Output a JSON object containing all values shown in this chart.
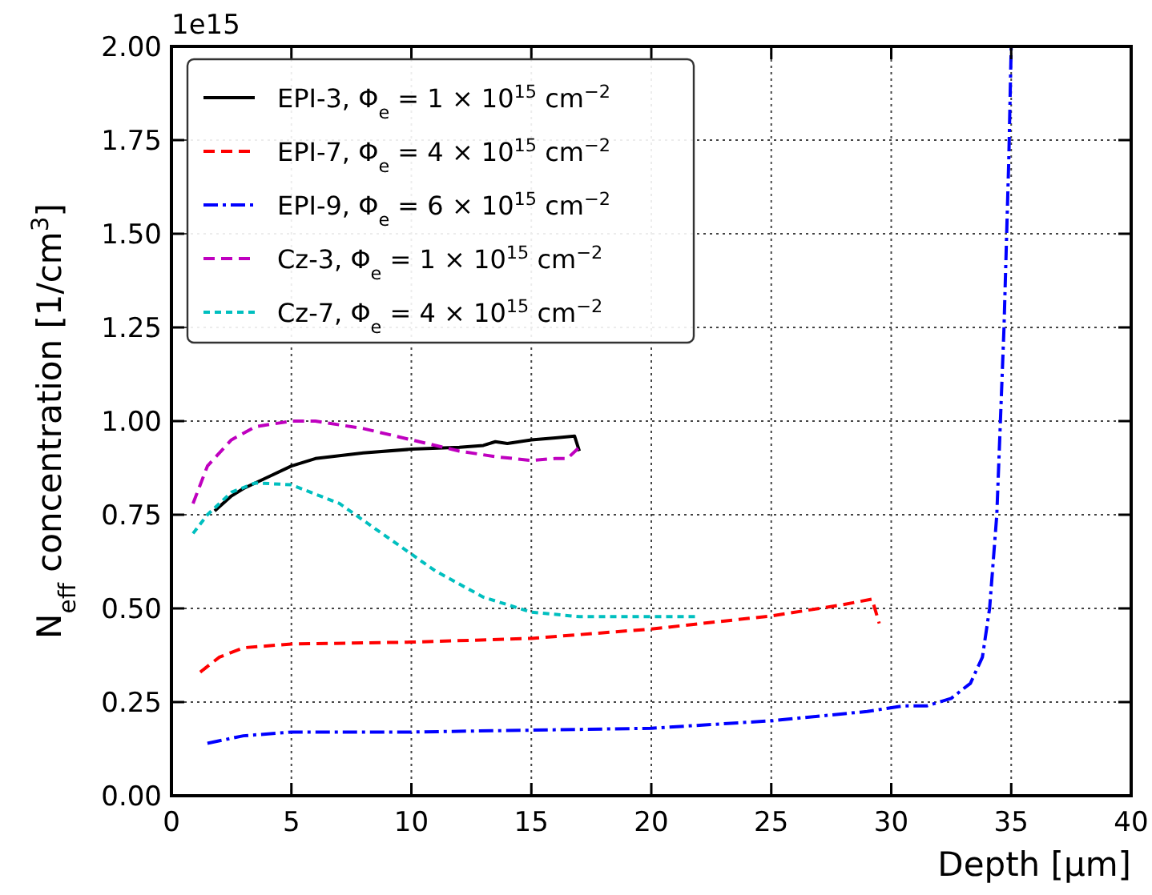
{
  "chart_data": {
    "type": "line",
    "xlabel": "Depth [µm]",
    "ylabel": "N$_{eff}$ concentration [1/cm$^{3}$]",
    "annotations": [
      "1e15"
    ],
    "xlim": [
      0,
      40
    ],
    "xticks": [
      0,
      5,
      10,
      15,
      20,
      25,
      30,
      35,
      40
    ],
    "ylim": [
      0,
      2
    ],
    "yticks": [
      {
        "value": 0,
        "label": "0.00"
      },
      {
        "value": 0.25,
        "label": "0.25"
      },
      {
        "value": 0.5,
        "label": "0.50"
      },
      {
        "value": 0.75,
        "label": "0.75"
      },
      {
        "value": 1,
        "label": "1.00"
      },
      {
        "value": 1.25,
        "label": "1.25"
      },
      {
        "value": 1.5,
        "label": "1.50"
      },
      {
        "value": 1.75,
        "label": "1.75"
      },
      {
        "value": 2,
        "label": "2.00"
      }
    ],
    "grid": true,
    "legend": "top left",
    "series": [
      {
        "name": "EPI-3, Φ$_{e}$ = 1 × 10$^{15}$ cm$^{−2}$",
        "color": "#000000",
        "line_style": "solid",
        "x": [
          1.8,
          2.5,
          3,
          4,
          5,
          6,
          8,
          10,
          12,
          13,
          13.5,
          14,
          15,
          16,
          16.8,
          17
        ],
        "values": [
          0.76,
          0.8,
          0.82,
          0.85,
          0.88,
          0.9,
          0.915,
          0.925,
          0.93,
          0.935,
          0.945,
          0.94,
          0.95,
          0.955,
          0.96,
          0.92
        ]
      },
      {
        "name": "EPI-7, Φ$_{e}$ = 4 × 10$^{15}$ cm$^{−2}$",
        "color": "#ff0000",
        "line_style": "dashed",
        "x": [
          1.2,
          2,
          3,
          5,
          10,
          15,
          20,
          25,
          28,
          29.2,
          29.5
        ],
        "values": [
          0.33,
          0.37,
          0.395,
          0.405,
          0.41,
          0.42,
          0.445,
          0.48,
          0.51,
          0.525,
          0.46
        ]
      },
      {
        "name": "EPI-9, Φ$_{e}$ = 6 × 10$^{15}$ cm$^{−2}$",
        "color": "#0000ff",
        "line_style": "dashdot",
        "x": [
          1.5,
          3,
          5,
          10,
          15,
          20,
          25,
          29,
          30.5,
          31.5,
          32.5,
          33.3,
          33.8,
          34.1,
          34.4,
          34.7,
          34.9,
          35
        ],
        "values": [
          0.14,
          0.16,
          0.17,
          0.17,
          0.175,
          0.18,
          0.2,
          0.225,
          0.24,
          0.24,
          0.26,
          0.3,
          0.37,
          0.5,
          0.75,
          1.25,
          1.7,
          2
        ]
      },
      {
        "name": "Cz-3, Φ$_{e}$ = 1 × 10$^{15}$ cm$^{−2}$",
        "color": "#bf00bf",
        "line_style": "dashed",
        "x": [
          0.9,
          1.5,
          2.5,
          3.5,
          5,
          6,
          8,
          10,
          12,
          13.5,
          15,
          16,
          16.5,
          17
        ],
        "values": [
          0.78,
          0.88,
          0.95,
          0.985,
          1,
          1,
          0.98,
          0.95,
          0.92,
          0.905,
          0.895,
          0.9,
          0.9,
          0.93
        ]
      },
      {
        "name": "Cz-7, Φ$_{e}$ = 4 × 10$^{15}$ cm$^{−2}$",
        "color": "#00bfbf",
        "line_style": "dotted",
        "x": [
          0.9,
          1.5,
          2.5,
          3.5,
          5,
          7,
          9,
          11,
          13,
          15,
          17,
          20,
          22
        ],
        "values": [
          0.7,
          0.75,
          0.81,
          0.835,
          0.83,
          0.78,
          0.69,
          0.6,
          0.53,
          0.49,
          0.478,
          0.478,
          0.478
        ]
      }
    ]
  }
}
